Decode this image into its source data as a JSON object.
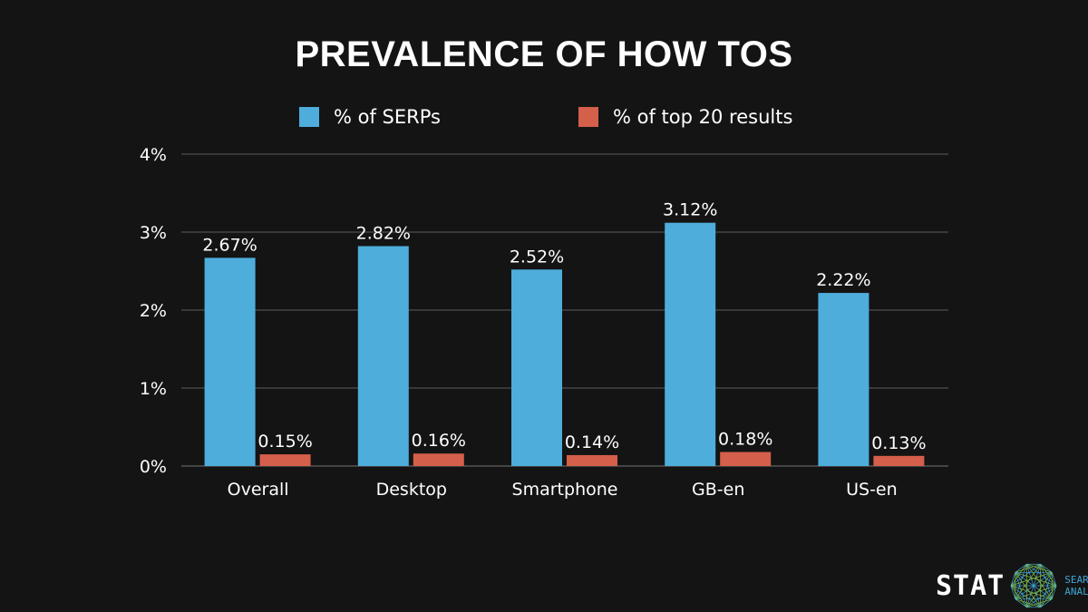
{
  "chart_data": {
    "type": "bar",
    "title": "PREVALENCE OF HOW TOS",
    "categories": [
      "Overall",
      "Desktop",
      "Smartphone",
      "GB-en",
      "US-en"
    ],
    "series": [
      {
        "name": "% of SERPs",
        "color": "#4eaddb",
        "values": [
          2.67,
          2.82,
          2.52,
          3.12,
          2.22
        ],
        "labels": [
          "2.67%",
          "2.82%",
          "2.52%",
          "3.12%",
          "2.22%"
        ]
      },
      {
        "name": "% of top 20 results",
        "color": "#d45f4a",
        "values": [
          0.15,
          0.16,
          0.14,
          0.18,
          0.13
        ],
        "labels": [
          "0.15%",
          "0.16%",
          "0.14%",
          "0.18%",
          "0.13%"
        ]
      }
    ],
    "ylim": [
      0,
      4
    ],
    "yticks": [
      "0%",
      "1%",
      "2%",
      "3%",
      "4%"
    ],
    "grid": true,
    "legend": "top"
  },
  "logo": {
    "brand": "STAT",
    "tagline1": "SEARCH",
    "tagline2": "ANALYTICS"
  }
}
